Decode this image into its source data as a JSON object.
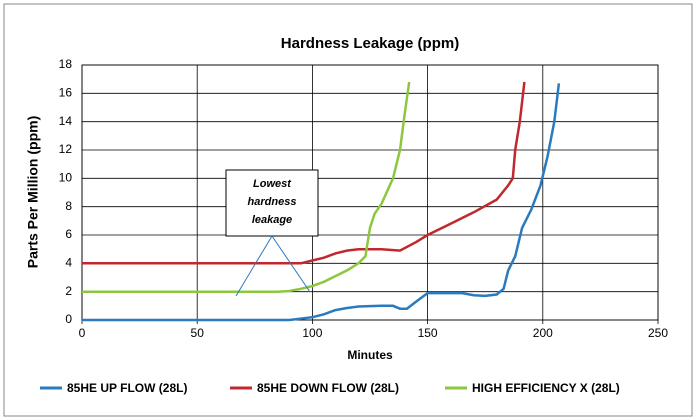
{
  "chart_data": {
    "type": "line",
    "title": "Hardness Leakage (ppm)",
    "x_label": "Minutes",
    "y_label": "Parts Per Million (ppm)",
    "annotation": [
      "Lowest",
      "hardness",
      "leakage"
    ],
    "xlim": [
      0,
      250
    ],
    "xticks": [
      0,
      50,
      100,
      150,
      200,
      250
    ],
    "ylim": [
      0,
      18
    ],
    "yticks": [
      0,
      2,
      4,
      6,
      8,
      10,
      12,
      14,
      16,
      18
    ],
    "grid": true,
    "legend": "bottom",
    "series": [
      {
        "name": "85HE UP FLOW (28L)",
        "color": "#2a7abf",
        "x": [
          0,
          90,
          100,
          105,
          110,
          115,
          120,
          130,
          135,
          138,
          141,
          145,
          150,
          155,
          165,
          170,
          175,
          180,
          183,
          185,
          188,
          191,
          195,
          199,
          202,
          205,
          207
        ],
        "values": [
          0,
          0,
          0.2,
          0.4,
          0.7,
          0.85,
          0.95,
          1,
          1,
          0.8,
          0.8,
          1.3,
          1.9,
          1.9,
          1.9,
          1.75,
          1.7,
          1.8,
          2.2,
          3.5,
          4.5,
          6.5,
          7.8,
          9.5,
          11.5,
          14,
          16.7
        ]
      },
      {
        "name": "85HE DOWN FLOW (28L)",
        "color": "#c0282d",
        "x": [
          0,
          95,
          100,
          105,
          110,
          115,
          120,
          130,
          138,
          145,
          150,
          160,
          170,
          180,
          185,
          187,
          188,
          190,
          192
        ],
        "values": [
          4,
          4,
          4.2,
          4.4,
          4.7,
          4.9,
          5,
          5,
          4.9,
          5.5,
          6,
          6.8,
          7.6,
          8.5,
          9.5,
          10,
          12,
          14,
          16.8
        ]
      },
      {
        "name": "HIGH EFFICIENCY X (28L)",
        "color": "#8dc63f",
        "x": [
          0,
          85,
          90,
          95,
          100,
          105,
          110,
          115,
          120,
          123,
          125,
          127,
          130,
          135,
          138,
          140,
          142
        ],
        "values": [
          2,
          2,
          2.05,
          2.2,
          2.4,
          2.7,
          3.1,
          3.5,
          4,
          4.5,
          6.5,
          7.5,
          8.2,
          10,
          12,
          14.5,
          16.8
        ]
      }
    ]
  }
}
